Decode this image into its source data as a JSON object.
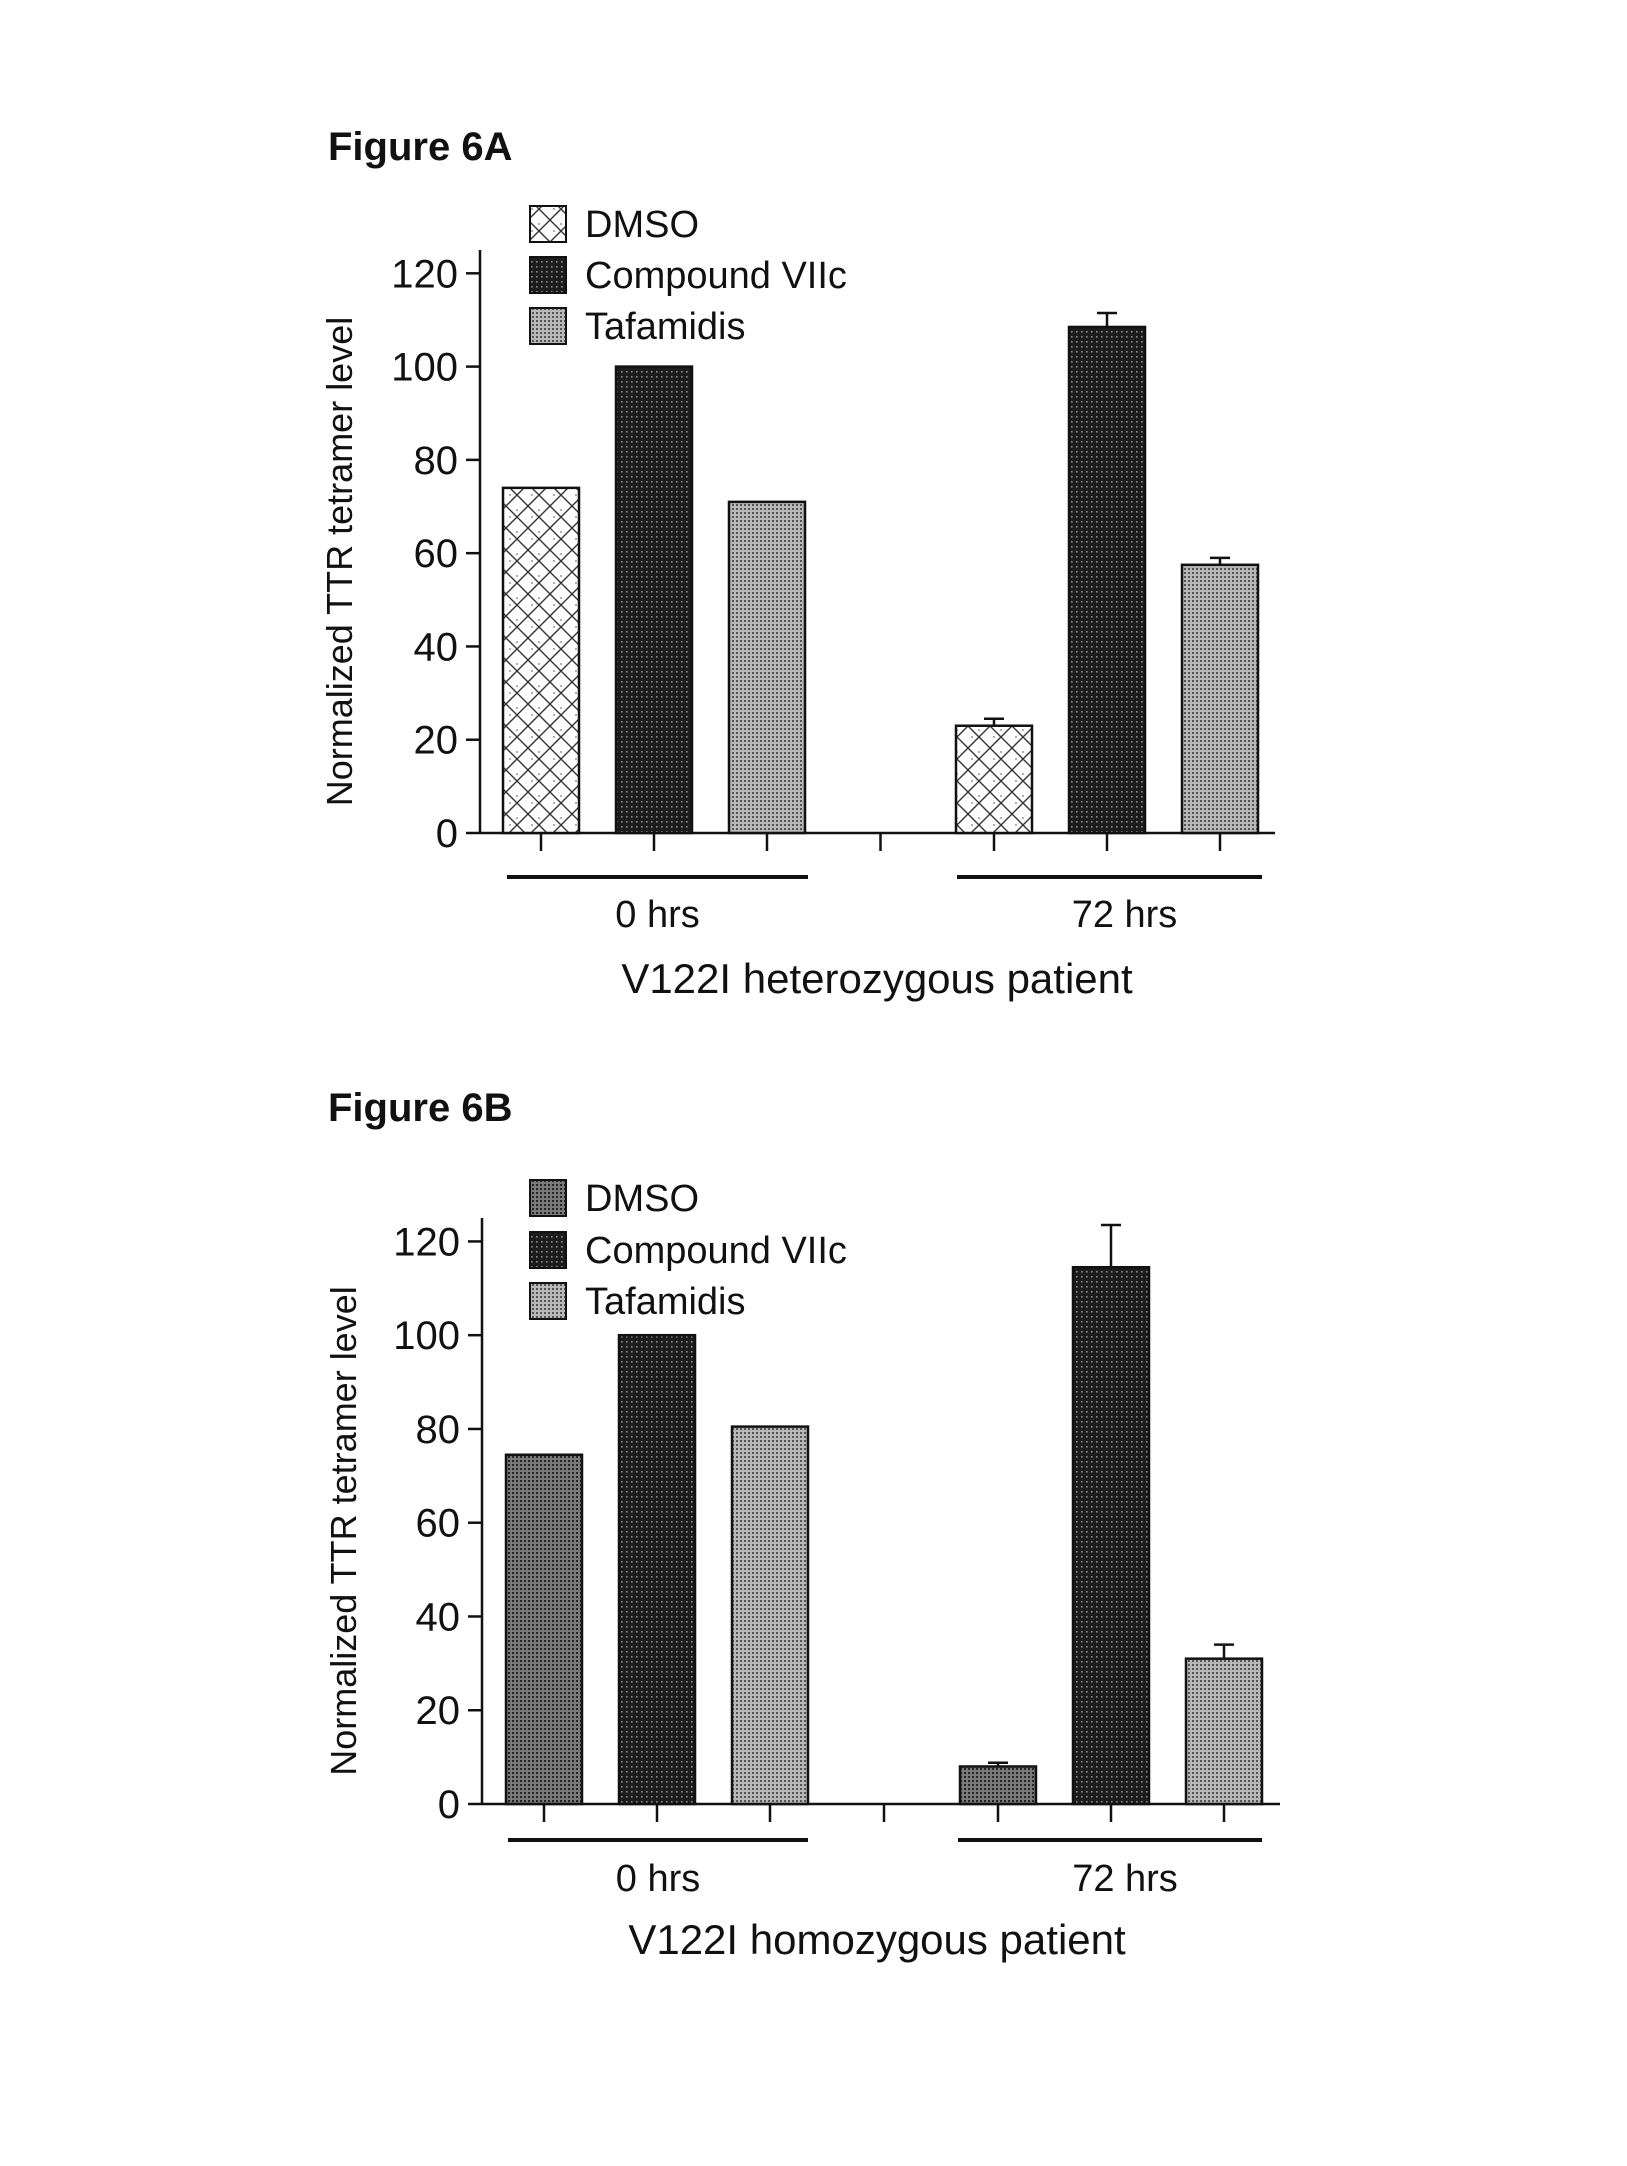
{
  "colors": {
    "ink": "#111111",
    "background": "#ffffff"
  },
  "chart_data": [
    {
      "type": "bar",
      "title": "Figure 6A",
      "ylabel": "Normalized TTR tetramer level",
      "xlabel": "V122I heterozygous patient",
      "ylim": [
        0,
        125
      ],
      "yticks": [
        "0",
        "20",
        "40",
        "60",
        "80",
        "100",
        "120"
      ],
      "groups": [
        "0 hrs",
        "72 hrs"
      ],
      "legend": [
        {
          "name": "DMSO",
          "pattern": "crosshatch"
        },
        {
          "name": "Compound VIIc",
          "pattern": "dark-dots"
        },
        {
          "name": "Tafamidis",
          "pattern": "light-dots"
        }
      ],
      "series": [
        {
          "name": "DMSO",
          "values": [
            74,
            23
          ],
          "errors": [
            0,
            1.5
          ]
        },
        {
          "name": "Compound VIIc",
          "values": [
            100,
            108.5
          ],
          "errors": [
            0,
            3
          ]
        },
        {
          "name": "Tafamidis",
          "values": [
            71,
            57.5
          ],
          "errors": [
            0,
            1.5
          ]
        }
      ]
    },
    {
      "type": "bar",
      "title": "Figure 6B",
      "ylabel": "Normalized TTR tetramer level",
      "xlabel": "V122I homozygous patient",
      "ylim": [
        0,
        125
      ],
      "yticks": [
        "0",
        "20",
        "40",
        "60",
        "80",
        "100",
        "120"
      ],
      "groups": [
        "0 hrs",
        "72 hrs"
      ],
      "legend": [
        {
          "name": "DMSO",
          "pattern": "medium-dots"
        },
        {
          "name": "Compound VIIc",
          "pattern": "dark-dots"
        },
        {
          "name": "Tafamidis",
          "pattern": "light-dots"
        }
      ],
      "series": [
        {
          "name": "DMSO",
          "values": [
            74.5,
            8
          ],
          "errors": [
            0,
            0.8
          ]
        },
        {
          "name": "Compound VIIc",
          "values": [
            100,
            114.5
          ],
          "errors": [
            0,
            9
          ]
        },
        {
          "name": "Tafamidis",
          "values": [
            80.5,
            31
          ],
          "errors": [
            0,
            3
          ]
        }
      ]
    }
  ]
}
